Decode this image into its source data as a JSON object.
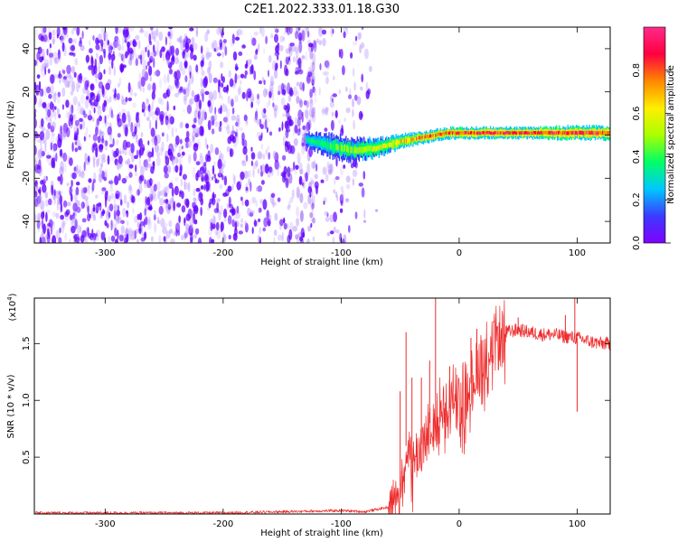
{
  "title": "C2E1.2022.333.01.18.G30",
  "colors": {
    "snr_line": "#ee2b2b",
    "spectrogram_scatter": "#6b00ff",
    "colorbar": [
      "#8000ff",
      "#3b3bff",
      "#00c8ff",
      "#00ff66",
      "#aaff00",
      "#ffee00",
      "#ff8800",
      "#ff0040",
      "#ff2a8a"
    ]
  },
  "chart_data": [
    {
      "type": "heatmap",
      "xlabel": "Height of straight line (km)",
      "ylabel": "Frequency (Hz)",
      "xlim": [
        -360,
        128
      ],
      "ylim": [
        -50,
        50
      ],
      "xticks": [
        {
          "v": -300,
          "label": "-300"
        },
        {
          "v": -200,
          "label": "-200"
        },
        {
          "v": -100,
          "label": "-100"
        },
        {
          "v": 0,
          "label": "0"
        },
        {
          "v": 100,
          "label": "100"
        }
      ],
      "yticks": [
        {
          "v": 40,
          "label": "40"
        },
        {
          "v": 20,
          "label": "20"
        },
        {
          "v": 0,
          "label": "0"
        },
        {
          "v": -20,
          "label": "-20"
        },
        {
          "v": -40,
          "label": "-40"
        }
      ],
      "colorbar": {
        "label": "Normalized spectral amplitude",
        "range": [
          0,
          1
        ],
        "ticks": [
          {
            "v": 0,
            "label": "0.0"
          },
          {
            "v": 0.2,
            "label": "0.2"
          },
          {
            "v": 0.4,
            "label": "0.4"
          },
          {
            "v": 0.6,
            "label": "0.6"
          },
          {
            "v": 0.8,
            "label": "0.8"
          }
        ]
      },
      "noise_region": {
        "x_range": [
          -360,
          -75
        ],
        "freq_range": [
          -50,
          50
        ],
        "amplitude": 0.05
      },
      "signal_band": [
        {
          "x": -130,
          "center": -2,
          "halfwidth": 3,
          "amplitude": 0.35
        },
        {
          "x": -110,
          "center": -5,
          "halfwidth": 5,
          "amplitude": 0.4
        },
        {
          "x": -90,
          "center": -7,
          "halfwidth": 5,
          "amplitude": 0.45
        },
        {
          "x": -70,
          "center": -6,
          "halfwidth": 4,
          "amplitude": 0.55
        },
        {
          "x": -50,
          "center": -3,
          "halfwidth": 3,
          "amplitude": 0.65
        },
        {
          "x": -30,
          "center": -1,
          "halfwidth": 2.5,
          "amplitude": 0.75
        },
        {
          "x": -10,
          "center": 1,
          "halfwidth": 2.5,
          "amplitude": 0.8
        },
        {
          "x": 20,
          "center": 1,
          "halfwidth": 2.5,
          "amplitude": 0.85
        },
        {
          "x": 60,
          "center": 1,
          "halfwidth": 2.5,
          "amplitude": 0.85
        },
        {
          "x": 100,
          "center": 1,
          "halfwidth": 3,
          "amplitude": 0.85
        },
        {
          "x": 128,
          "center": 1,
          "halfwidth": 3,
          "amplitude": 0.85
        }
      ]
    },
    {
      "type": "line",
      "xlabel": "Height of straight line (km)",
      "ylabel": "SNR (10 * v/v)",
      "yscale_label": "(x10",
      "yscale_exponent": "4",
      "yscale_suffix": ")",
      "xlim": [
        -360,
        128
      ],
      "ylim": [
        0,
        1.9
      ],
      "xticks": [
        {
          "v": -300,
          "label": "-300"
        },
        {
          "v": -200,
          "label": "-200"
        },
        {
          "v": -100,
          "label": "-100"
        },
        {
          "v": 0,
          "label": "0"
        },
        {
          "v": 100,
          "label": "100"
        }
      ],
      "yticks": [
        {
          "v": 0.5,
          "label": "0.5"
        },
        {
          "v": 1.0,
          "label": "1.0"
        },
        {
          "v": 1.5,
          "label": "1.5"
        }
      ],
      "series": [
        {
          "points": [
            [
              -360,
              0.01
            ],
            [
              -300,
              0.01
            ],
            [
              -250,
              0.01
            ],
            [
              -200,
              0.01
            ],
            [
              -150,
              0.02
            ],
            [
              -100,
              0.03
            ],
            [
              -80,
              0.02
            ],
            [
              -60,
              0.06
            ],
            [
              -50,
              0.25
            ],
            [
              -45,
              0.6
            ],
            [
              -40,
              0.45
            ],
            [
              -35,
              0.55
            ],
            [
              -30,
              0.65
            ],
            [
              -25,
              0.8
            ],
            [
              -20,
              0.75
            ],
            [
              -15,
              1.0
            ],
            [
              -10,
              0.85
            ],
            [
              -5,
              1.05
            ],
            [
              0,
              0.95
            ],
            [
              5,
              1.1
            ],
            [
              10,
              1.15
            ],
            [
              15,
              1.3
            ],
            [
              20,
              1.38
            ],
            [
              25,
              1.45
            ],
            [
              30,
              1.52
            ],
            [
              35,
              1.57
            ],
            [
              40,
              1.6
            ],
            [
              50,
              1.62
            ],
            [
              60,
              1.6
            ],
            [
              70,
              1.58
            ],
            [
              80,
              1.58
            ],
            [
              90,
              1.56
            ],
            [
              100,
              1.55
            ],
            [
              110,
              1.52
            ],
            [
              120,
              1.5
            ],
            [
              128,
              1.5
            ]
          ],
          "spikes": [
            [
              -50,
              1.08
            ],
            [
              -45,
              1.6
            ],
            [
              -40,
              1.2
            ],
            [
              -32,
              1.2
            ],
            [
              -25,
              1.35
            ],
            [
              -20,
              1.9
            ],
            [
              -15,
              1.0
            ],
            [
              -8,
              1.3
            ],
            [
              10,
              1.55
            ],
            [
              15,
              1.63
            ],
            [
              50,
              1.73
            ],
            [
              90,
              1.75
            ],
            [
              98,
              1.9
            ],
            [
              100,
              0.9
            ]
          ]
        }
      ]
    }
  ]
}
